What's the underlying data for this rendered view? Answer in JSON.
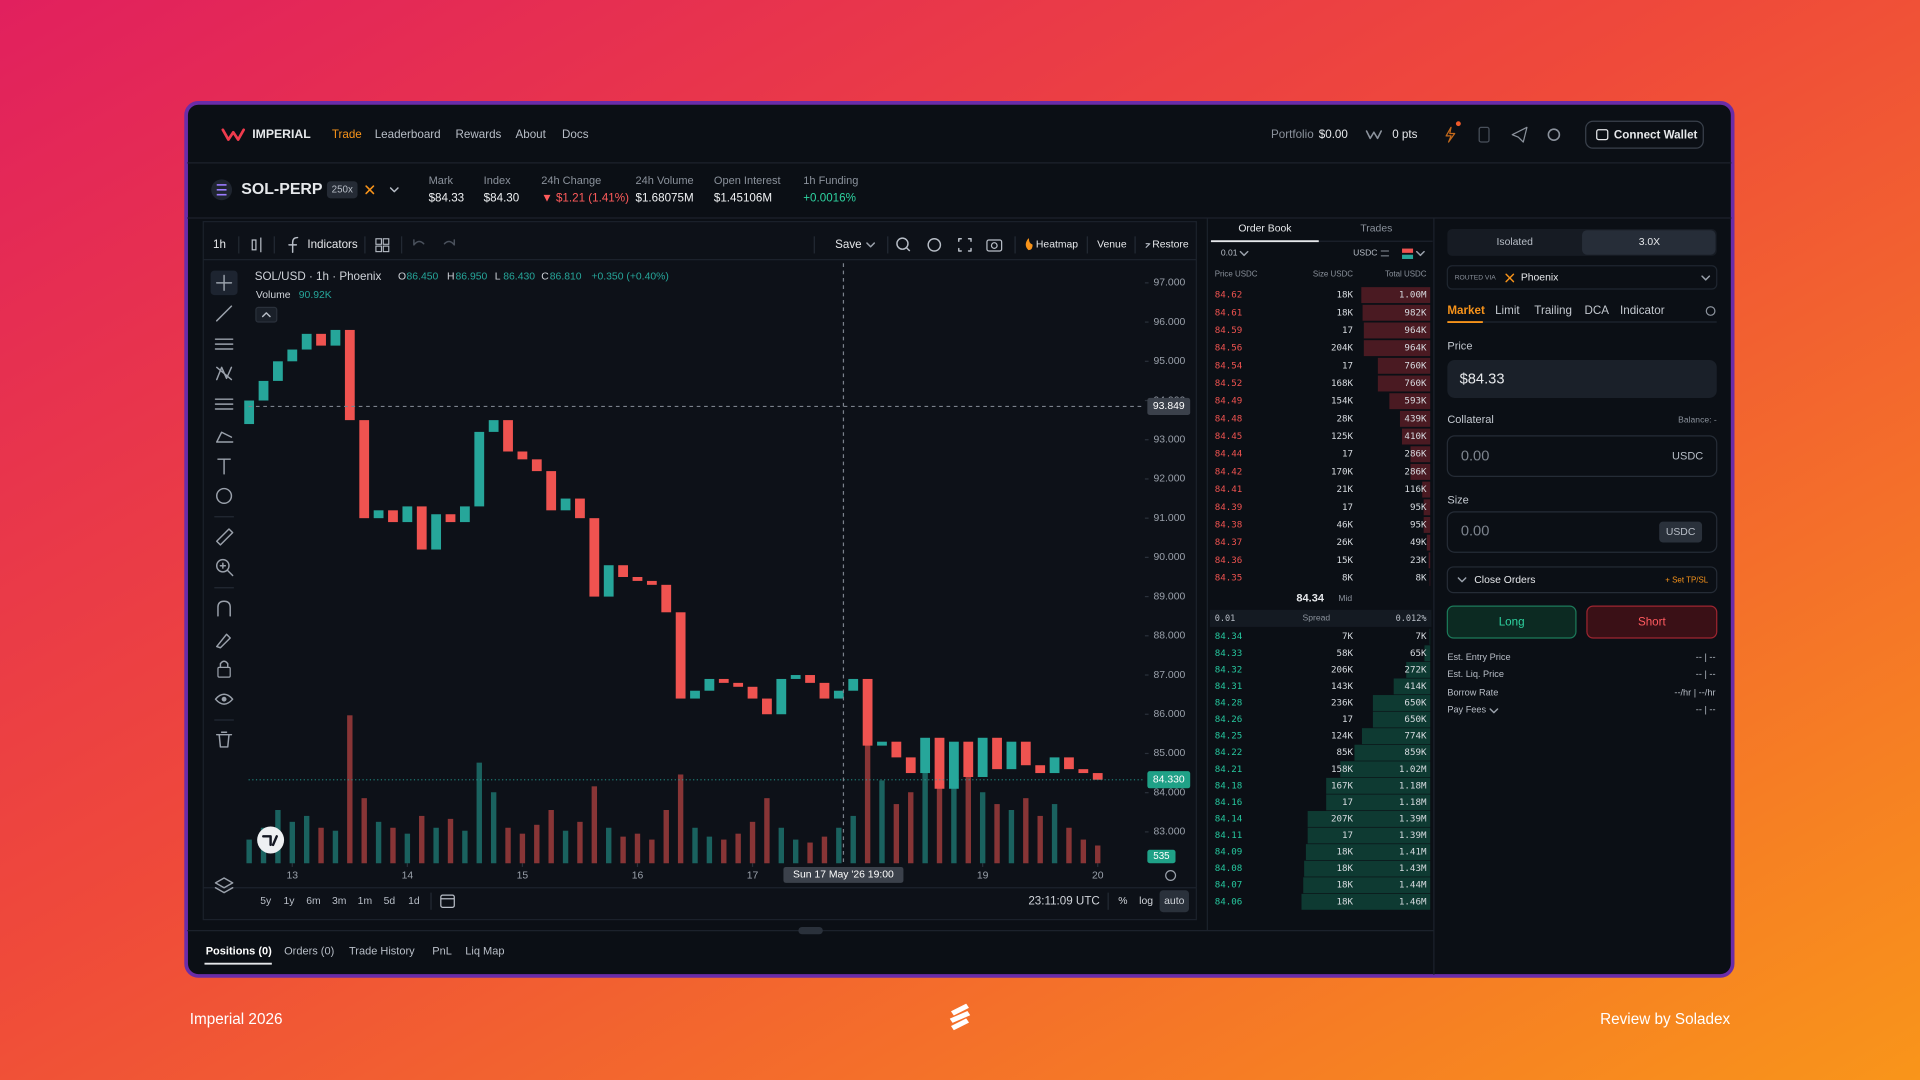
{
  "nav": {
    "brand": "IMPERIAL",
    "links": [
      "Trade",
      "Leaderboard",
      "Rewards",
      "About",
      "Docs"
    ],
    "portfolio_label": "Portfolio",
    "portfolio_value": "$0.00",
    "points": "0 pts",
    "connect_wallet": "Connect Wallet"
  },
  "market": {
    "symbol": "SOL-PERP",
    "leverage": "250x",
    "stats": [
      {
        "label": "Mark",
        "value": "$84.33"
      },
      {
        "label": "Index",
        "value": "$84.30"
      },
      {
        "label": "24h Change",
        "value": "▼ $1.21 (1.41%)"
      },
      {
        "label": "24h Volume",
        "value": "$1.68075M"
      },
      {
        "label": "Open Interest",
        "value": "$1.45106M"
      },
      {
        "label": "1h Funding",
        "value": "+0.0016%"
      }
    ]
  },
  "toolbar": {
    "interval": "1h",
    "indicators": "Indicators",
    "save": "Save",
    "heatmap": "Heatmap",
    "venue": "Venue",
    "restore": "Restore"
  },
  "chart_data": {
    "type": "candlestick",
    "title": "SOL/USD · 1h · Phoenix",
    "ohlc": [
      {
        "label": "O",
        "value": "86.450"
      },
      {
        "label": "H",
        "value": "86.950"
      },
      {
        "label": "L",
        "value": "86.430"
      },
      {
        "label": "C",
        "value": "86.810"
      }
    ],
    "change": "+0.350 (+0.40%)",
    "volume_label": "Volume",
    "volume_value": "90.92K",
    "x": [
      12.625,
      12.75,
      12.875,
      13,
      13.125,
      13.25,
      13.375,
      13.5,
      13.625,
      13.75,
      13.875,
      14,
      14.125,
      14.25,
      14.375,
      14.5,
      14.625,
      14.75,
      14.875,
      15,
      15.125,
      15.25,
      15.375,
      15.5,
      15.625,
      15.75,
      15.875,
      16,
      16.125,
      16.25,
      16.375,
      16.5,
      16.625,
      16.75,
      16.875,
      17,
      17.125,
      17.25,
      17.375,
      17.5,
      17.625,
      17.75,
      17.875,
      18,
      18.125,
      18.25,
      18.375,
      18.5,
      18.625,
      18.75,
      18.875,
      19,
      19.125,
      19.25,
      19.375,
      19.5,
      19.625,
      19.75,
      19.875,
      20
    ],
    "open": [
      93.4,
      94.0,
      94.5,
      95.0,
      95.3,
      95.7,
      95.4,
      95.8,
      93.5,
      91.0,
      91.2,
      90.9,
      91.3,
      90.2,
      91.1,
      90.9,
      91.3,
      93.2,
      93.5,
      92.7,
      92.5,
      92.2,
      91.2,
      91.5,
      91.0,
      89.0,
      89.8,
      89.5,
      89.4,
      89.3,
      88.6,
      86.4,
      86.6,
      86.9,
      86.8,
      86.7,
      86.4,
      86.0,
      86.9,
      87.0,
      86.8,
      86.4,
      86.6,
      86.9,
      85.2,
      85.3,
      84.9,
      84.5,
      85.4,
      84.1,
      85.3,
      84.4,
      85.4,
      84.6,
      85.3,
      84.7,
      84.5,
      84.9,
      84.6,
      84.5
    ],
    "close": [
      94.0,
      94.5,
      95.0,
      95.3,
      95.7,
      95.4,
      95.8,
      93.5,
      91.0,
      91.2,
      90.9,
      91.3,
      90.2,
      91.1,
      90.9,
      91.3,
      93.2,
      93.5,
      92.7,
      92.5,
      92.2,
      91.2,
      91.5,
      91.0,
      89.0,
      89.8,
      89.5,
      89.4,
      89.3,
      88.6,
      86.4,
      86.6,
      86.9,
      86.8,
      86.7,
      86.4,
      86.0,
      86.9,
      87.0,
      86.8,
      86.4,
      86.6,
      86.9,
      85.2,
      85.3,
      84.9,
      84.5,
      85.4,
      84.1,
      85.3,
      84.4,
      85.4,
      84.6,
      85.3,
      84.7,
      84.5,
      84.9,
      84.6,
      84.5,
      84.33
    ],
    "volume": [
      40,
      60,
      90,
      70,
      80,
      60,
      55,
      250,
      110,
      70,
      60,
      50,
      80,
      60,
      75,
      55,
      170,
      120,
      60,
      50,
      65,
      90,
      55,
      70,
      130,
      60,
      45,
      50,
      40,
      90,
      150,
      60,
      45,
      40,
      50,
      70,
      110,
      60,
      40,
      35,
      45,
      60,
      80,
      200,
      140,
      100,
      120,
      160,
      190,
      130,
      180,
      120,
      100,
      90,
      110,
      80,
      100,
      60,
      40,
      30
    ],
    "up_color": "#26a69a",
    "down_color": "#ef5350",
    "xlim": [
      12.62,
      20.41
    ],
    "xticks": [
      13,
      14,
      15,
      16,
      17,
      19,
      20
    ],
    "ylim": [
      82.2,
      97.5
    ],
    "yticks": [
      {
        "value": 97,
        "label": "97.000"
      },
      {
        "value": 96,
        "label": "96.000"
      },
      {
        "value": 95,
        "label": "95.000"
      },
      {
        "value": 94,
        "label": "94.000"
      },
      {
        "value": 93,
        "label": "93.000"
      },
      {
        "value": 92,
        "label": "92.000"
      },
      {
        "value": 91,
        "label": "91.000"
      },
      {
        "value": 90,
        "label": "90.000"
      },
      {
        "value": 89,
        "label": "89.000"
      },
      {
        "value": 88,
        "label": "88.000"
      },
      {
        "value": 87,
        "label": "87.000"
      },
      {
        "value": 86,
        "label": "86.000"
      },
      {
        "value": 85,
        "label": "85.000"
      },
      {
        "value": 84,
        "label": "84.000"
      },
      {
        "value": 83,
        "label": "83.000"
      }
    ],
    "volume_lim": [
      0,
      300
    ],
    "crosshair": {
      "price": 93.849,
      "time": {
        "value": 17.79,
        "label": "Sun 17 May '26 19:00"
      }
    },
    "last_price": {
      "value": 84.33,
      "label": "84.330"
    },
    "last_volume": 535
  },
  "chart_footer": {
    "ranges": [
      "5y",
      "1y",
      "6m",
      "3m",
      "1m",
      "5d",
      "1d"
    ],
    "clock": "23:11:09 UTC",
    "scales": [
      "%",
      "log",
      "auto"
    ]
  },
  "order_book": {
    "tabs": [
      "Order Book",
      "Trades"
    ],
    "tick_size": "0.01",
    "quote": "USDC",
    "headers": [
      "Price USDC",
      "Size USDC",
      "Total USDC"
    ],
    "asks": [
      {
        "price": "84.62",
        "size": "18K",
        "total": {
          "value": 1000,
          "label": "1.00M"
        }
      },
      {
        "price": "84.61",
        "size": "18K",
        "total": {
          "value": 982,
          "label": "982K"
        }
      },
      {
        "price": "84.59",
        "size": "17",
        "total": {
          "value": 964,
          "label": "964K"
        }
      },
      {
        "price": "84.56",
        "size": "204K",
        "total": {
          "value": 964,
          "label": "964K"
        }
      },
      {
        "price": "84.54",
        "size": "17",
        "total": {
          "value": 760,
          "label": "760K"
        }
      },
      {
        "price": "84.52",
        "size": "168K",
        "total": {
          "value": 760,
          "label": "760K"
        }
      },
      {
        "price": "84.49",
        "size": "154K",
        "total": {
          "value": 593,
          "label": "593K"
        }
      },
      {
        "price": "84.48",
        "size": "28K",
        "total": {
          "value": 439,
          "label": "439K"
        }
      },
      {
        "price": "84.45",
        "size": "125K",
        "total": {
          "value": 410,
          "label": "410K"
        }
      },
      {
        "price": "84.44",
        "size": "17",
        "total": {
          "value": 286,
          "label": "286K"
        }
      },
      {
        "price": "84.42",
        "size": "170K",
        "total": {
          "value": 286,
          "label": "286K"
        }
      },
      {
        "price": "84.41",
        "size": "21K",
        "total": {
          "value": 116,
          "label": "116K"
        }
      },
      {
        "price": "84.39",
        "size": "17",
        "total": {
          "value": 95,
          "label": "95K"
        }
      },
      {
        "price": "84.38",
        "size": "46K",
        "total": {
          "value": 95,
          "label": "95K"
        }
      },
      {
        "price": "84.37",
        "size": "26K",
        "total": {
          "value": 49,
          "label": "49K"
        }
      },
      {
        "price": "84.36",
        "size": "15K",
        "total": {
          "value": 23,
          "label": "23K"
        }
      },
      {
        "price": "84.35",
        "size": "8K",
        "total": {
          "value": 8,
          "label": "8K"
        }
      }
    ],
    "mid": "84.34",
    "mid_label": "Mid",
    "spread": [
      "0.01",
      "Spread",
      "0.012%"
    ],
    "bids": [
      {
        "price": "84.34",
        "size": "7K",
        "total": {
          "value": 7,
          "label": "7K"
        }
      },
      {
        "price": "84.33",
        "size": "58K",
        "total": {
          "value": 65,
          "label": "65K"
        }
      },
      {
        "price": "84.32",
        "size": "206K",
        "total": {
          "value": 272,
          "label": "272K"
        }
      },
      {
        "price": "84.31",
        "size": "143K",
        "total": {
          "value": 414,
          "label": "414K"
        }
      },
      {
        "price": "84.28",
        "size": "236K",
        "total": {
          "value": 650,
          "label": "650K"
        }
      },
      {
        "price": "84.26",
        "size": "17",
        "total": {
          "value": 650,
          "label": "650K"
        }
      },
      {
        "price": "84.25",
        "size": "124K",
        "total": {
          "value": 774,
          "label": "774K"
        }
      },
      {
        "price": "84.22",
        "size": "85K",
        "total": {
          "value": 859,
          "label": "859K"
        }
      },
      {
        "price": "84.21",
        "size": "158K",
        "total": {
          "value": 1020,
          "label": "1.02M"
        }
      },
      {
        "price": "84.18",
        "size": "167K",
        "total": {
          "value": 1180,
          "label": "1.18M"
        }
      },
      {
        "price": "84.16",
        "size": "17",
        "total": {
          "value": 1180,
          "label": "1.18M"
        }
      },
      {
        "price": "84.14",
        "size": "207K",
        "total": {
          "value": 1390,
          "label": "1.39M"
        }
      },
      {
        "price": "84.11",
        "size": "17",
        "total": {
          "value": 1390,
          "label": "1.39M"
        }
      },
      {
        "price": "84.09",
        "size": "18K",
        "total": {
          "value": 1410,
          "label": "1.41M"
        }
      },
      {
        "price": "84.08",
        "size": "18K",
        "total": {
          "value": 1430,
          "label": "1.43M"
        }
      },
      {
        "price": "84.07",
        "size": "18K",
        "total": {
          "value": 1440,
          "label": "1.44M"
        }
      },
      {
        "price": "84.06",
        "size": "18K",
        "total": {
          "value": 1460,
          "label": "1.46M"
        }
      }
    ],
    "ask_total_lim": [
      0,
      3200
    ],
    "bid_total_lim": [
      0,
      2500
    ]
  },
  "order_form": {
    "margin_mode": "Isolated",
    "leverage": "3.0X",
    "routed_label": "ROUTED VIA",
    "venue": "Phoenix",
    "tabs": [
      "Market",
      "Limit",
      "Trailing",
      "DCA",
      "Indicator"
    ],
    "price_label": "Price",
    "price_value": "$84.33",
    "collateral_label": "Collateral",
    "balance": "Balance: -",
    "collateral_placeholder": "0.00",
    "collateral_unit": "USDC",
    "size_label": "Size",
    "size_placeholder": "0.00",
    "size_unit": "USDC",
    "close_orders": "Close Orders",
    "set_tpsl": "+ Set TP/SL",
    "long": "Long",
    "short": "Short",
    "info": [
      {
        "label": "Est. Entry Price",
        "value": "-- | --"
      },
      {
        "label": "Est. Liq. Price",
        "value": "-- | --"
      },
      {
        "label": "Borrow Rate",
        "value": "--/hr | --/hr"
      },
      {
        "label": "Pay Fees",
        "value": "-- | --"
      }
    ]
  },
  "bottom_tabs": [
    "Positions (0)",
    "Orders (0)",
    "Trade History",
    "PnL",
    "Liq Map"
  ],
  "footer": {
    "left": "Imperial 2026",
    "right": "Review by Soladex"
  }
}
